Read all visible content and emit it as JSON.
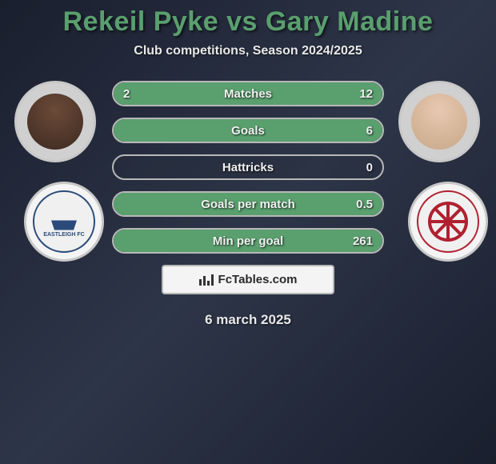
{
  "title": "Rekeil Pyke vs Gary Madine",
  "subtitle": "Club competitions, Season 2024/2025",
  "date": "6 march 2025",
  "brand": "FcTables.com",
  "colors": {
    "accent": "#5a9f6e",
    "border": "#b8b8b8",
    "text_light": "#e8e8e8",
    "background_gradient": [
      "#1a1f2e",
      "#2d3548",
      "#1a1f2e"
    ],
    "brand_box_bg": "#f4f4f4"
  },
  "player_left": {
    "name": "Rekeil Pyke",
    "club": "Eastleigh FC",
    "club_colors": [
      "#2a4a7a",
      "#f0f0f0"
    ]
  },
  "player_right": {
    "name": "Gary Madine",
    "club": "Hartlepool United FC",
    "club_colors": [
      "#b02030",
      "#f0f0f0"
    ]
  },
  "stats": [
    {
      "label": "Matches",
      "left_val": "2",
      "right_val": "12",
      "left_pct": 14,
      "right_pct": 86
    },
    {
      "label": "Goals",
      "left_val": "",
      "right_val": "6",
      "left_pct": 0,
      "right_pct": 100
    },
    {
      "label": "Hattricks",
      "left_val": "",
      "right_val": "0",
      "left_pct": 0,
      "right_pct": 0
    },
    {
      "label": "Goals per match",
      "left_val": "",
      "right_val": "0.5",
      "left_pct": 0,
      "right_pct": 100
    },
    {
      "label": "Min per goal",
      "left_val": "",
      "right_val": "261",
      "left_pct": 0,
      "right_pct": 100
    }
  ],
  "typography": {
    "title_fontsize": 34,
    "title_weight": 900,
    "subtitle_fontsize": 16,
    "stat_label_fontsize": 15,
    "date_fontsize": 17
  }
}
